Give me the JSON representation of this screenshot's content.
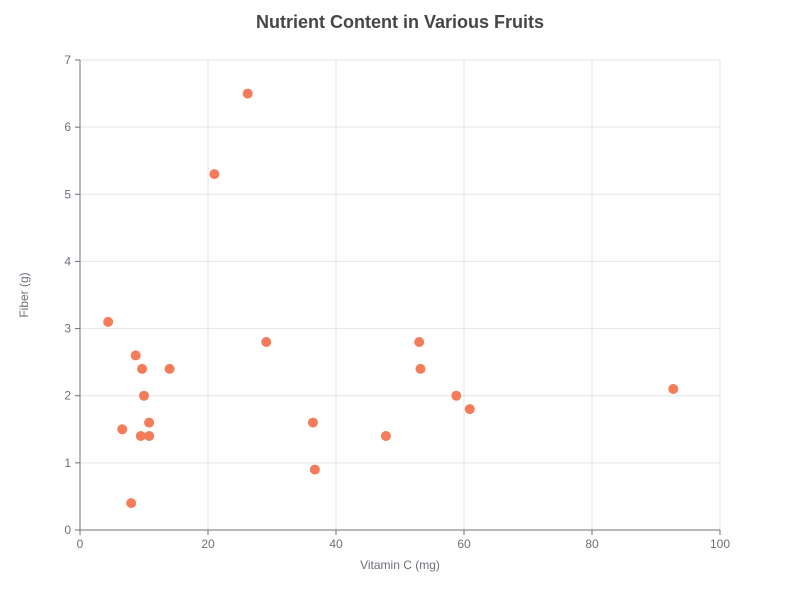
{
  "chart_data": {
    "type": "scatter",
    "title": "Nutrient Content in Various Fruits",
    "xlabel": "Vitamin C (mg)",
    "ylabel": "Fiber (g)",
    "xlim": [
      0,
      100
    ],
    "ylim": [
      0,
      7
    ],
    "x_ticks": [
      0,
      20,
      40,
      60,
      80,
      100
    ],
    "y_ticks": [
      0,
      1,
      2,
      3,
      4,
      5,
      6,
      7
    ],
    "grid": true,
    "marker_color": "#f47c5a",
    "points": [
      {
        "x": 4.4,
        "y": 3.1
      },
      {
        "x": 8.7,
        "y": 2.6
      },
      {
        "x": 9.7,
        "y": 2.4
      },
      {
        "x": 14.0,
        "y": 2.4
      },
      {
        "x": 10.0,
        "y": 2.0
      },
      {
        "x": 6.6,
        "y": 1.5
      },
      {
        "x": 10.8,
        "y": 1.6
      },
      {
        "x": 9.5,
        "y": 1.4
      },
      {
        "x": 10.8,
        "y": 1.4
      },
      {
        "x": 8.0,
        "y": 0.4
      },
      {
        "x": 21.0,
        "y": 5.3
      },
      {
        "x": 26.2,
        "y": 6.5
      },
      {
        "x": 29.1,
        "y": 2.8
      },
      {
        "x": 36.4,
        "y": 1.6
      },
      {
        "x": 36.7,
        "y": 0.9
      },
      {
        "x": 47.8,
        "y": 1.4
      },
      {
        "x": 53.0,
        "y": 2.8
      },
      {
        "x": 53.2,
        "y": 2.4
      },
      {
        "x": 58.8,
        "y": 2.0
      },
      {
        "x": 60.9,
        "y": 1.8
      },
      {
        "x": 92.7,
        "y": 2.1
      }
    ]
  }
}
